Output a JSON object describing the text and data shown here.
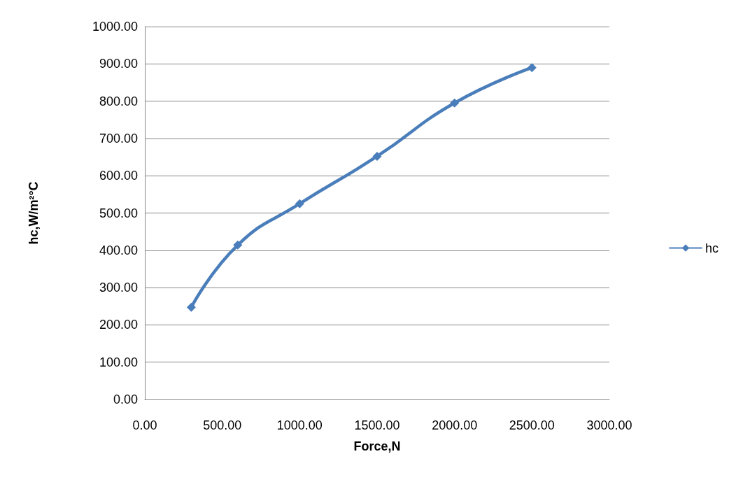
{
  "chart_data": {
    "type": "line",
    "xlabel": "Force,N",
    "ylabel": "hc,W/m²°C",
    "series": [
      {
        "name": "hc",
        "color": "#4a7ebb",
        "x": [
          300,
          600,
          1000,
          1500,
          2000,
          2500
        ],
        "values": [
          247,
          414,
          525,
          652,
          795,
          890
        ]
      }
    ],
    "xlim": [
      0,
      3000
    ],
    "xticks": [
      {
        "value": 0,
        "label": "0.00"
      },
      {
        "value": 500,
        "label": "500.00"
      },
      {
        "value": 1000,
        "label": "1000.00"
      },
      {
        "value": 1500,
        "label": "1500.00"
      },
      {
        "value": 2000,
        "label": "2000.00"
      },
      {
        "value": 2500,
        "label": "2500.00"
      },
      {
        "value": 3000,
        "label": "3000.00"
      }
    ],
    "ylim": [
      0,
      1000
    ],
    "yticks": [
      {
        "value": 0,
        "label": "0.00"
      },
      {
        "value": 100,
        "label": "100.00"
      },
      {
        "value": 200,
        "label": "200.00"
      },
      {
        "value": 300,
        "label": "300.00"
      },
      {
        "value": 400,
        "label": "400.00"
      },
      {
        "value": 500,
        "label": "500.00"
      },
      {
        "value": 600,
        "label": "600.00"
      },
      {
        "value": 700,
        "label": "700.00"
      },
      {
        "value": 800,
        "label": "800.00"
      },
      {
        "value": 900,
        "label": "900.00"
      },
      {
        "value": 1000,
        "label": "1000.00"
      }
    ],
    "grid": "y",
    "legend": "right",
    "marker": "diamond",
    "line_style": "solid"
  }
}
